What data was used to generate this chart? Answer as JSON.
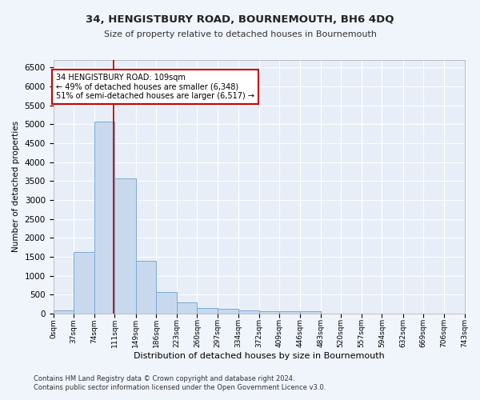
{
  "title": "34, HENGISTBURY ROAD, BOURNEMOUTH, BH6 4DQ",
  "subtitle": "Size of property relative to detached houses in Bournemouth",
  "xlabel": "Distribution of detached houses by size in Bournemouth",
  "ylabel": "Number of detached properties",
  "bar_color": "#c8d9ee",
  "bar_edge_color": "#7aaad4",
  "vline_x": 109,
  "vline_color": "#cc0000",
  "annotation_line1": "34 HENGISTBURY ROAD: 109sqm",
  "annotation_line2": "← 49% of detached houses are smaller (6,348)",
  "annotation_line3": "51% of semi-detached houses are larger (6,517) →",
  "annotation_box_color": "#cc0000",
  "bin_edges": [
    0,
    37,
    74,
    111,
    149,
    186,
    223,
    260,
    297,
    334,
    372,
    409,
    446,
    483,
    520,
    557,
    594,
    632,
    669,
    706,
    743
  ],
  "bar_heights": [
    75,
    1625,
    5075,
    3575,
    1400,
    575,
    285,
    140,
    115,
    80,
    65,
    60,
    55,
    0,
    0,
    0,
    0,
    0,
    0,
    0
  ],
  "ylim": [
    0,
    6700
  ],
  "yticks": [
    0,
    500,
    1000,
    1500,
    2000,
    2500,
    3000,
    3500,
    4000,
    4500,
    5000,
    5500,
    6000,
    6500
  ],
  "background_color": "#f0f4fb",
  "plot_bg_color": "#e8eef8",
  "grid_color": "#ffffff",
  "footnote1": "Contains HM Land Registry data © Crown copyright and database right 2024.",
  "footnote2": "Contains public sector information licensed under the Open Government Licence v3.0."
}
